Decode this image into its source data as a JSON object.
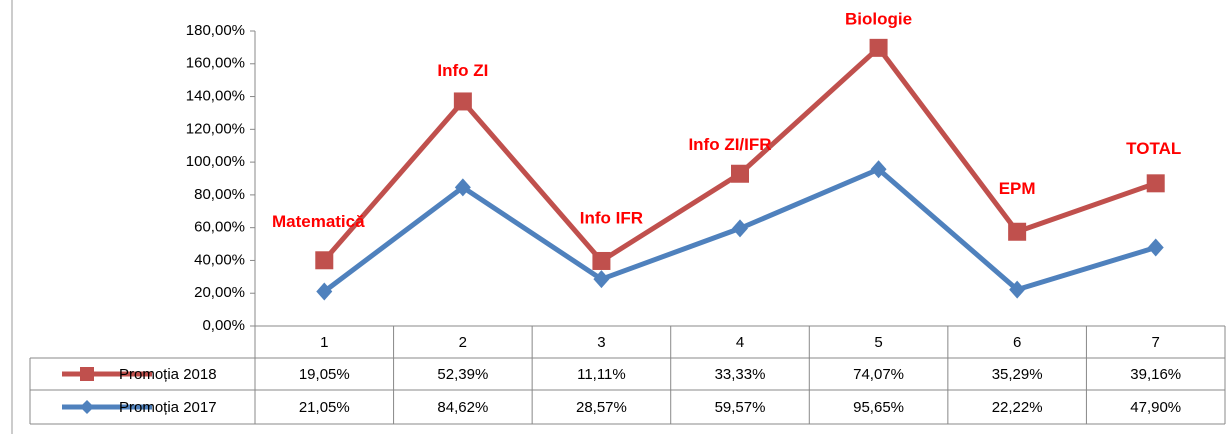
{
  "chart_data": {
    "type": "line",
    "stacked": true,
    "categories": [
      "1",
      "2",
      "3",
      "4",
      "5",
      "6",
      "7"
    ],
    "series": [
      {
        "name": "Promoția 2018",
        "color": "#c0504d",
        "marker": "square",
        "values": [
          19.05,
          52.39,
          11.11,
          33.33,
          74.07,
          35.29,
          39.16
        ],
        "value_labels": [
          "19,05%",
          "52,39%",
          "11,11%",
          "33,33%",
          "74,07%",
          "35,29%",
          "39,16%"
        ]
      },
      {
        "name": "Promoția 2017",
        "color": "#4f81bd",
        "marker": "diamond",
        "values": [
          21.05,
          84.62,
          28.57,
          59.57,
          95.65,
          22.22,
          47.9
        ],
        "value_labels": [
          "21,05%",
          "84,62%",
          "28,57%",
          "59,57%",
          "95,65%",
          "22,22%",
          "47,90%"
        ]
      }
    ],
    "annotations": [
      "Matematică",
      "Info ZI",
      "Info IFR",
      "Info ZI/IFR",
      "Biologie",
      "EPM",
      "TOTAL"
    ],
    "annotation_color": "#ff0000",
    "ylim": [
      0,
      180
    ],
    "yticks": [
      {
        "value": 0,
        "label": "0,00%"
      },
      {
        "value": 20,
        "label": "20,00%"
      },
      {
        "value": 40,
        "label": "40,00%"
      },
      {
        "value": 60,
        "label": "60,00%"
      },
      {
        "value": 80,
        "label": "80,00%"
      },
      {
        "value": 100,
        "label": "100,00%"
      },
      {
        "value": 120,
        "label": "120,00%"
      },
      {
        "value": 140,
        "label": "140,00%"
      },
      {
        "value": 160,
        "label": "160,00%"
      },
      {
        "value": 180,
        "label": "180,00%"
      }
    ]
  }
}
